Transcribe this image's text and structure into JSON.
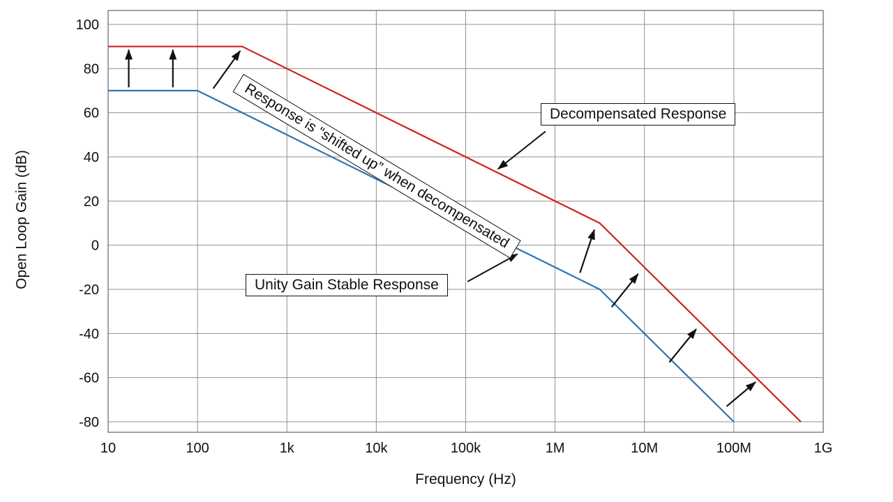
{
  "chart_data": {
    "type": "line",
    "title": "",
    "xlabel": "Frequency (Hz)",
    "ylabel": "Open Loop Gain (dB)",
    "x_scale": "log",
    "xlim": [
      10,
      1000000000
    ],
    "ylim": [
      -80,
      100
    ],
    "grid": true,
    "grid_color": "#909090",
    "frame_color": "#707070",
    "arrow_color": "#111111",
    "x_ticks": [
      {
        "value": 10,
        "label": "10"
      },
      {
        "value": 100,
        "label": "100"
      },
      {
        "value": 1000,
        "label": "1k"
      },
      {
        "value": 10000,
        "label": "10k"
      },
      {
        "value": 100000,
        "label": "100k"
      },
      {
        "value": 1000000,
        "label": "1M"
      },
      {
        "value": 10000000,
        "label": "10M"
      },
      {
        "value": 100000000,
        "label": "100M"
      },
      {
        "value": 1000000000,
        "label": "1G"
      }
    ],
    "y_ticks": [
      100,
      80,
      60,
      40,
      20,
      0,
      -20,
      -40,
      -60,
      -80
    ],
    "series": [
      {
        "name": "Unity Gain Stable Response",
        "color": "#2e74b4",
        "points": [
          [
            10,
            70
          ],
          [
            100,
            70
          ],
          [
            3160000,
            -20
          ],
          [
            100000000,
            -80
          ]
        ]
      },
      {
        "name": "Decompensated Response",
        "color": "#d02020",
        "points": [
          [
            10,
            90
          ],
          [
            316,
            90
          ],
          [
            3160000,
            10
          ],
          [
            562000000,
            -80
          ]
        ]
      }
    ],
    "shift_arrows": [
      {
        "from": [
          17,
          71.5
        ],
        "to": [
          17,
          88.5
        ]
      },
      {
        "from": [
          53,
          71.5
        ],
        "to": [
          53,
          88.5
        ]
      },
      {
        "from": [
          150,
          71
        ],
        "to": [
          300,
          88
        ]
      },
      {
        "from": [
          1900000,
          -12.5
        ],
        "to": [
          2750000,
          7
        ]
      },
      {
        "from": [
          4300000,
          -28
        ],
        "to": [
          8500000,
          -13
        ]
      },
      {
        "from": [
          19000000,
          -53
        ],
        "to": [
          38000000,
          -38
        ]
      },
      {
        "from": [
          83000000,
          -73
        ],
        "to": [
          175000000,
          -62
        ]
      }
    ],
    "annotations": {
      "shifted_up": {
        "text": "Response is “shifted up” when decompensated",
        "rotation_deg": 31
      },
      "decompensated": {
        "text": "Decompensated Response",
        "arrow_from": [
          780000,
          51.5
        ],
        "arrow_to": [
          230000,
          34.5
        ]
      },
      "unity": {
        "text": "Unity Gain Stable Response",
        "arrow_from": [
          105000,
          -16.5
        ],
        "arrow_to": [
          380000,
          -4
        ]
      }
    }
  }
}
